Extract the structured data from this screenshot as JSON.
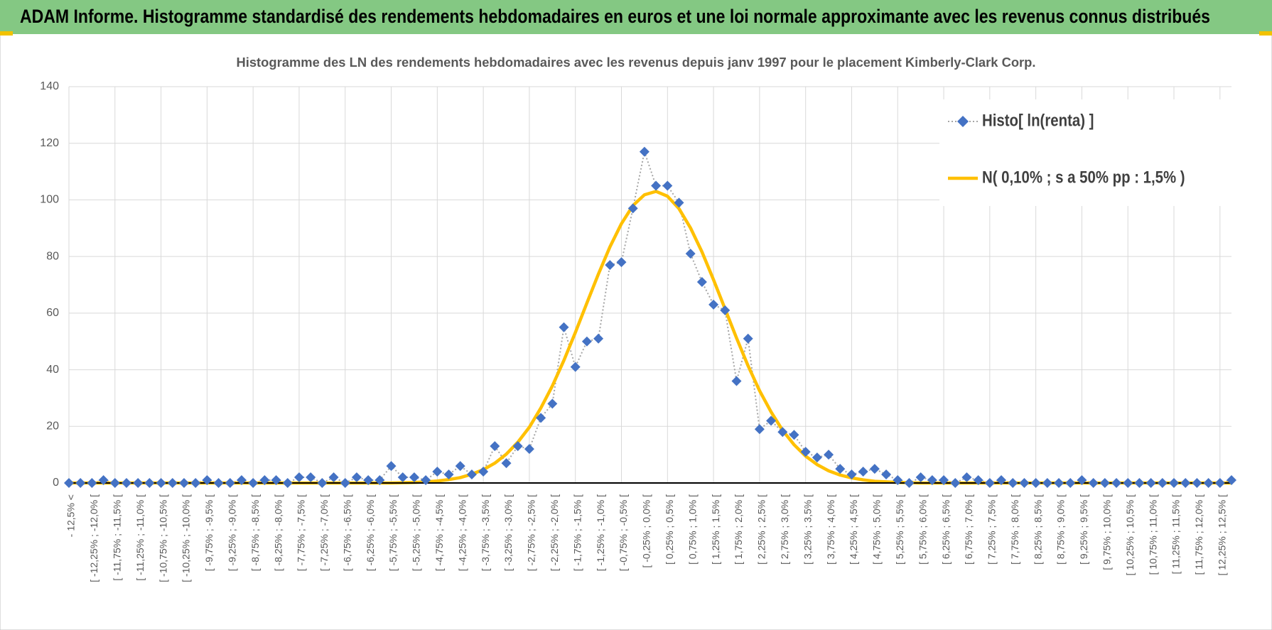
{
  "page_title": "ADAM Informe. Histogramme standardisé des rendements hebdomadaires en euros et une loi normale approximante avec les revenus connus distribués",
  "chart_data": {
    "type": "line",
    "title": "Histogramme  des LN des rendements hebdomadaires avec les revenus depuis janv 1997 pour le placement Kimberly-Clark Corp.",
    "categories": [
      "- 12,5% <",
      null,
      "[ -12,25% ; -12,0% [",
      null,
      "[ -11,75% ; -11,5% [",
      null,
      "[ -11,25% ; -11,0% [",
      null,
      "[ -10,75% ; -10,5% [",
      null,
      "[ -10,25% ; -10,0% [",
      null,
      "[ -9,75% ; -9,5% [",
      null,
      "[ -9,25% ; -9,0% [",
      null,
      "[ -8,75% ; -8,5% [",
      null,
      "[ -8,25% ; -8,0% [",
      null,
      "[ -7,75% ; -7,5% [",
      null,
      "[ -7,25% ; -7,0% [",
      null,
      "[ -6,75% ; -6,5% [",
      null,
      "[ -6,25% ; -6,0% [",
      null,
      "[ -5,75% ; -5,5% [",
      null,
      "[ -5,25% ; -5,0% [",
      null,
      "[ -4,75% ; -4,5% [",
      null,
      "[ -4,25% ; -4,0% [",
      null,
      "[ -3,75% ; -3,5% [",
      null,
      "[ -3,25% ; -3,0% [",
      null,
      "[ -2,75% ; -2,5% [",
      null,
      "[ -2,25% ; -2,0% [",
      null,
      "[ -1,75% ; -1,5% [",
      null,
      "[ -1,25% ; -1,0% [",
      null,
      "[ -0,75% ; -0,5% [",
      null,
      "[ -0,25% ; 0,0% [",
      null,
      "[ 0,25% ; 0,5% [",
      null,
      "[ 0,75% ; 1,0% [",
      null,
      "[ 1,25% ; 1,5% [",
      null,
      "[ 1,75% ; 2,0% [",
      null,
      "[ 2,25% ; 2,5% [",
      null,
      "[ 2,75% ; 3,0% [",
      null,
      "[ 3,25% ; 3,5% [",
      null,
      "[ 3,75% ; 4,0% [",
      null,
      "[ 4,25% ; 4,5% [",
      null,
      "[ 4,75% ; 5,0% [",
      null,
      "[ 5,25% ; 5,5% [",
      null,
      "[ 5,75% ; 6,0% [",
      null,
      "[ 6,25% ; 6,5% [",
      null,
      "[ 6,75% ; 7,0% [",
      null,
      "[ 7,25% ; 7,5% [",
      null,
      "[ 7,75% ; 8,0% [",
      null,
      "[ 8,25% ; 8,5% [",
      null,
      "[ 8,75% ; 9,0% [",
      null,
      "[ 9,25% ; 9,5% [",
      null,
      "[ 9,75% ; 10,0% [",
      null,
      "[ 10,25% ; 10,5% [",
      null,
      "[ 10,75% ; 11,0% [",
      null,
      "[ 11,25% ; 11,5% [",
      null,
      "[ 11,75% ; 12,0% [",
      null,
      "[ 12,25% ; 12,5% [",
      null
    ],
    "series": [
      {
        "name": "Histo[ ln(renta) ]",
        "color": "#4472c4",
        "values": [
          0,
          0,
          0,
          1,
          0,
          0,
          0,
          0,
          0,
          0,
          0,
          0,
          1,
          0,
          0,
          1,
          0,
          1,
          1,
          0,
          2,
          2,
          0,
          2,
          0,
          2,
          1,
          1,
          6,
          2,
          2,
          1,
          4,
          3,
          6,
          3,
          4,
          13,
          7,
          13,
          12,
          23,
          28,
          55,
          41,
          50,
          51,
          77,
          78,
          97,
          117,
          105,
          105,
          99,
          81,
          71,
          63,
          61,
          36,
          51,
          19,
          22,
          18,
          17,
          11,
          9,
          10,
          5,
          3,
          4,
          5,
          3,
          1,
          0,
          2,
          1,
          1,
          0,
          2,
          1,
          0,
          1,
          0,
          0,
          0,
          0,
          0,
          0,
          1,
          0,
          0,
          0,
          0,
          0,
          0,
          0,
          0,
          0,
          0,
          0,
          0,
          1
        ]
      },
      {
        "name": "N( 0,10% ; s a 50% pp : 1,5% )",
        "color": "#ffc000",
        "values": [
          0,
          0,
          0,
          0,
          0,
          0,
          0,
          0,
          0,
          0,
          0,
          0,
          0,
          0,
          0,
          0,
          0,
          0,
          0,
          0,
          0,
          0,
          0,
          0,
          0,
          0,
          0,
          0,
          0,
          0.1,
          0.2,
          0.4,
          0.7,
          1.2,
          1.9,
          3.1,
          4.7,
          7.0,
          10.2,
          14.4,
          19.7,
          26.5,
          34.3,
          43.3,
          53.2,
          63.6,
          73.8,
          83.4,
          91.6,
          98.0,
          101.8,
          103.0,
          101.3,
          96.9,
          90.1,
          81.6,
          71.8,
          61.5,
          51.2,
          41.4,
          32.6,
          25.1,
          18.6,
          13.5,
          9.5,
          6.5,
          4.3,
          2.8,
          1.8,
          1.1,
          0.6,
          0.4,
          0.2,
          0.1,
          0,
          0,
          0,
          0,
          0,
          0,
          0,
          0,
          0,
          0,
          0,
          0,
          0,
          0,
          0,
          0,
          0,
          0,
          0,
          0,
          0,
          0,
          0,
          0,
          0,
          0,
          0,
          0
        ]
      }
    ],
    "ylim": [
      0,
      140
    ],
    "yticks": [
      0,
      20,
      40,
      60,
      80,
      100,
      120,
      140
    ],
    "grid": true,
    "legend": "top-right"
  }
}
